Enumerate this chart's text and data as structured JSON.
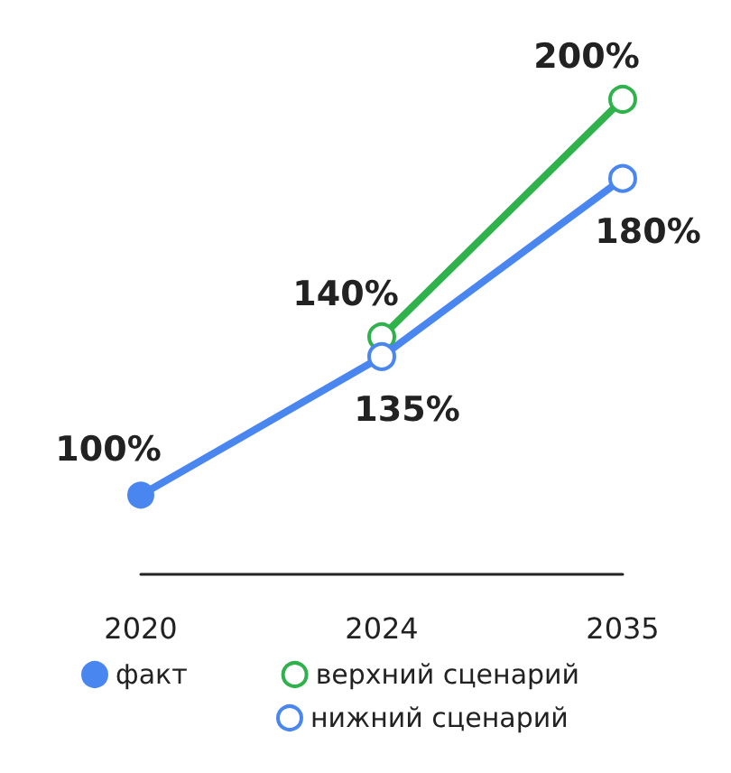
{
  "chart_data": {
    "type": "line",
    "categories": [
      "2020",
      "2024",
      "2035"
    ],
    "series": [
      {
        "name": "факт",
        "color": "#4a86f0",
        "values": [
          100,
          135,
          null
        ],
        "value_labels": [
          "100%",
          null,
          null
        ],
        "marker": "circle"
      },
      {
        "name": "верхний сценарий",
        "color": "#2fb24c",
        "values": [
          null,
          140,
          200
        ],
        "value_labels": [
          null,
          "140%",
          "200%"
        ],
        "marker": "circle"
      },
      {
        "name": "нижний сценарий",
        "color": "#4a86f0",
        "values": [
          null,
          135,
          180
        ],
        "value_labels": [
          null,
          "135%",
          "180%"
        ],
        "marker": "circle"
      }
    ],
    "legend": "bottom",
    "tick_labels": "x",
    "line_style": "solid"
  }
}
